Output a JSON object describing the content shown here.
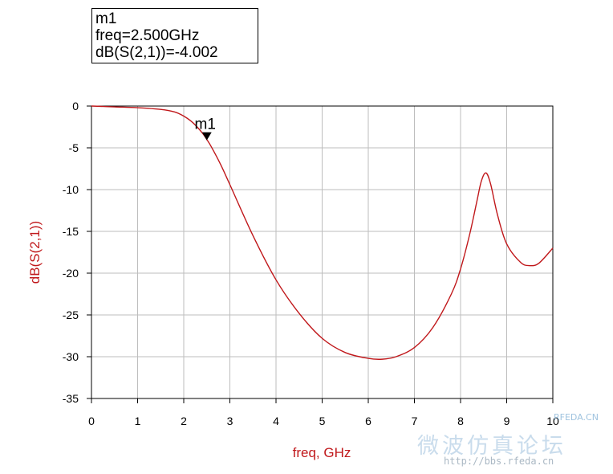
{
  "marker": {
    "name": "m1",
    "freq_text": "freq=2.500GHz",
    "value_text": "dB(S(2,1))=-4.002",
    "label": "m1",
    "x": 2.5,
    "y": -4.002
  },
  "watermark": {
    "site_cn": "微波仿真论坛",
    "url": "http://bbs.rfeda.cn",
    "logo_text": "RFEDA.CN"
  },
  "colors": {
    "trace": "#c0181b",
    "axis_label": "#c0181b",
    "grid": "#bdbdbd"
  },
  "chart_data": {
    "type": "line",
    "xlabel": "freq, GHz",
    "ylabel": "dB(S(2,1))",
    "xlim": [
      0,
      10
    ],
    "ylim": [
      -35,
      0
    ],
    "xticks": [
      0,
      1,
      2,
      3,
      4,
      5,
      6,
      7,
      8,
      9,
      10
    ],
    "yticks": [
      0,
      -5,
      -10,
      -15,
      -20,
      -25,
      -30,
      -35
    ],
    "grid": true,
    "series": [
      {
        "x": [
          0,
          0.5,
          1.0,
          1.5,
          1.8,
          2.0,
          2.2,
          2.4,
          2.5,
          2.6,
          2.8,
          3.0,
          3.5,
          4.0,
          4.5,
          5.0,
          5.5,
          6.0,
          6.3,
          6.6,
          7.0,
          7.4,
          7.8,
          8.0,
          8.2,
          8.35,
          8.45,
          8.55,
          8.65,
          8.8,
          9.0,
          9.3,
          9.5,
          9.7,
          10.0
        ],
        "y": [
          0,
          -0.1,
          -0.2,
          -0.4,
          -0.7,
          -1.2,
          -2.0,
          -3.2,
          -4.0,
          -4.9,
          -7.0,
          -9.4,
          -15.5,
          -20.8,
          -24.8,
          -27.8,
          -29.5,
          -30.2,
          -30.3,
          -30.0,
          -28.9,
          -26.5,
          -22.5,
          -19.5,
          -15.3,
          -11.5,
          -9.0,
          -8.0,
          -9.3,
          -13.0,
          -16.5,
          -18.7,
          -19.1,
          -18.8,
          -17.0
        ]
      }
    ]
  }
}
